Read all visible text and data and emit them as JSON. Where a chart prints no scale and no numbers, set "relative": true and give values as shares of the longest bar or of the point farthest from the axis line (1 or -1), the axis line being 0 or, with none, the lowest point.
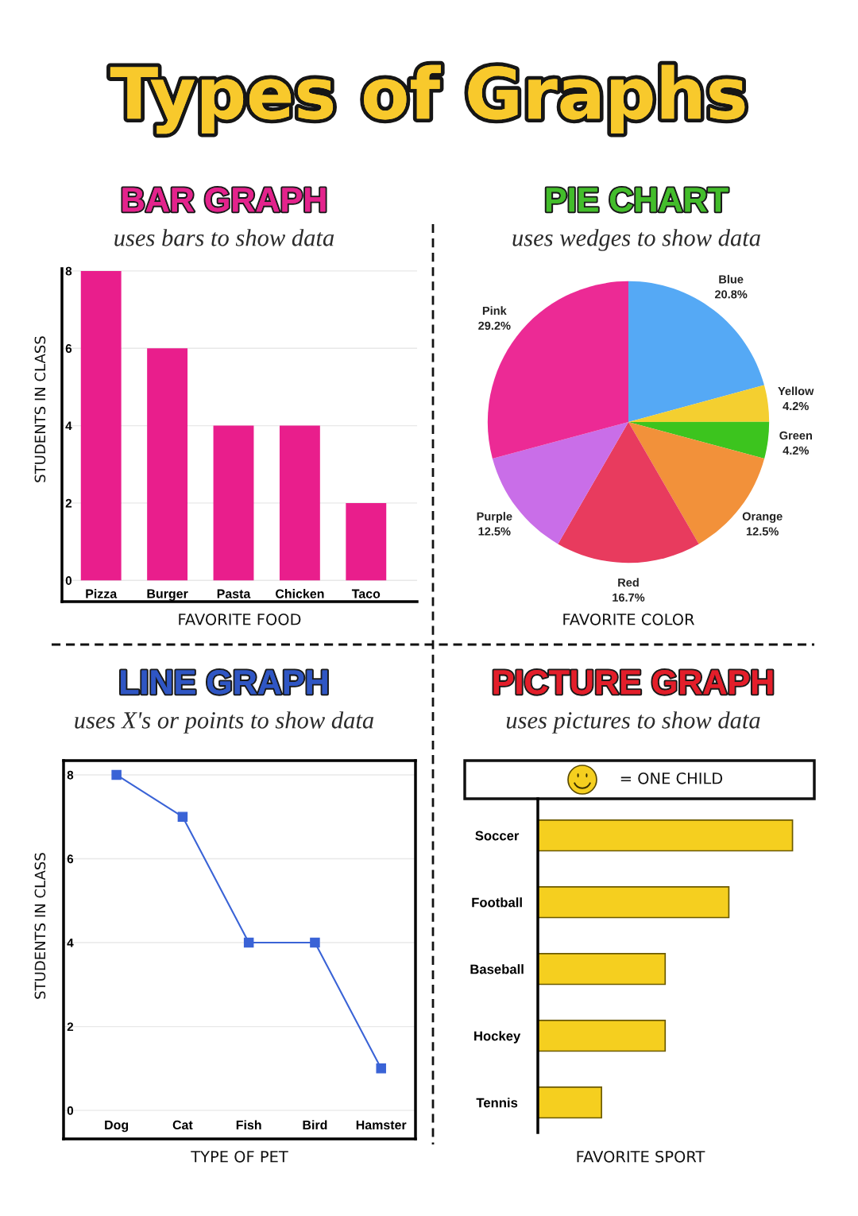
{
  "chart_data": [
    {
      "type": "other",
      "title": "Types of Graphs"
    },
    {
      "type": "bar",
      "title": "BAR GRAPH",
      "subtitle": "uses bars to show data",
      "xlabel": "FAVORITE FOOD",
      "ylabel": "STUDENTS IN CLASS",
      "categories": [
        "Pizza",
        "Burger",
        "Pasta",
        "Chicken",
        "Taco"
      ],
      "values": [
        8,
        6,
        4,
        4,
        2
      ],
      "color": "#e91e8c",
      "ylim": [
        -0.55,
        8.06
      ],
      "yticks": [
        0,
        2,
        4,
        6,
        8
      ],
      "grid": "y"
    },
    {
      "type": "pie",
      "title": "PIE CHART",
      "subtitle": "uses wedges to show data",
      "xlabel": "FAVORITE COLOR",
      "categories": [
        "Blue",
        "Yellow",
        "Green",
        "Orange",
        "Red",
        "Purple",
        "Pink"
      ],
      "values": [
        20.8,
        4.2,
        4.2,
        12.5,
        16.7,
        12.5,
        29.2
      ],
      "value_labels": [
        "20.8%",
        "4.2%",
        "4.2%",
        "12.5%",
        "16.7%",
        "12.5%",
        "29.2%"
      ],
      "colors": [
        "#55a9f5",
        "#f4cf30",
        "#3cc41e",
        "#f2913a",
        "#e83b5e",
        "#c96ee8",
        "#ec2a95"
      ]
    },
    {
      "type": "line",
      "title": "LINE GRAPH",
      "subtitle": "uses X's or points to show data",
      "xlabel": "TYPE OF PET",
      "ylabel": "STUDENTS IN CLASS",
      "categories": [
        "Dog",
        "Cat",
        "Fish",
        "Bird",
        "Hamster"
      ],
      "values": [
        8,
        7,
        4,
        4,
        1
      ],
      "color": "#3a63d6",
      "marker": "square",
      "line_style": "solid",
      "ylim": [
        -0.68,
        8.34
      ],
      "yticks": [
        0,
        2,
        4,
        6,
        8
      ],
      "grid": "y"
    },
    {
      "type": "bar",
      "orientation": "horizontal",
      "relative": true,
      "title": "PICTURE GRAPH",
      "subtitle": "uses pictures to show data",
      "xlabel": "FAVORITE SPORT",
      "categories": [
        "Soccer",
        "Football",
        "Baseball",
        "Hockey",
        "Tennis"
      ],
      "values": [
        1,
        0.75,
        0.5,
        0.5,
        0.25
      ],
      "color": "#f5cf1f",
      "annotations": [
        "= ONE CHILD"
      ]
    }
  ]
}
